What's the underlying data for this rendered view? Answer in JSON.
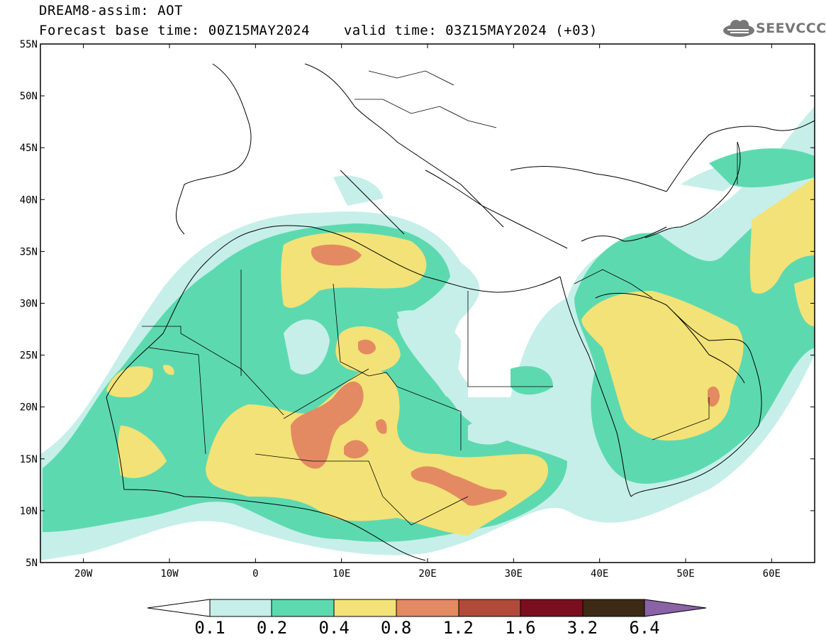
{
  "header": {
    "title": "DREAM8-assim: AOT",
    "base_time_label": "Forecast base time: 00Z15MAY2024",
    "valid_time_label": "valid time: 03Z15MAY2024 (+03)",
    "logo_text": "SEEVCCC"
  },
  "map": {
    "lon_range": [
      -25,
      65
    ],
    "lat_range": [
      5,
      55
    ],
    "y_ticks": [
      "55N",
      "50N",
      "45N",
      "40N",
      "35N",
      "30N",
      "25N",
      "20N",
      "15N",
      "10N",
      "5N"
    ],
    "x_ticks": [
      "20W",
      "10W",
      "0",
      "10E",
      "20E",
      "30E",
      "40E",
      "50E",
      "60E"
    ]
  },
  "colorbar": {
    "levels": [
      "0.1",
      "0.2",
      "0.4",
      "0.8",
      "1.2",
      "1.6",
      "3.2",
      "6.4"
    ],
    "colors": {
      "below_0.1": "#ffffff",
      "0.1-0.2": "#c6efe9",
      "0.2-0.4": "#5dd9b0",
      "0.4-0.8": "#f3e277",
      "0.8-1.2": "#e38a63",
      "1.2-1.6": "#b14a38",
      "1.6-3.2": "#7a0e1f",
      "3.2-6.4": "#3c2a15",
      "above_6.4": "#8a62a6"
    }
  }
}
